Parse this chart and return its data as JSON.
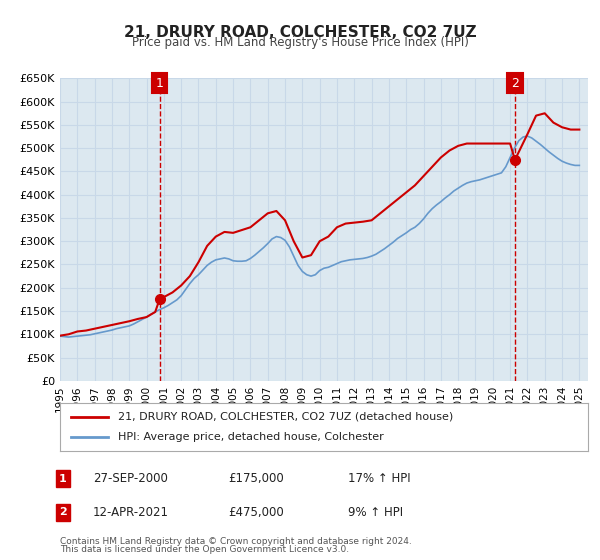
{
  "title": "21, DRURY ROAD, COLCHESTER, CO2 7UZ",
  "subtitle": "Price paid vs. HM Land Registry's House Price Index (HPI)",
  "background_color": "#ffffff",
  "grid_color": "#c8d8e8",
  "plot_bg_color": "#dce8f0",
  "red_line_color": "#cc0000",
  "blue_line_color": "#6699cc",
  "marker_color": "#cc0000",
  "annotation_box_color": "#cc0000",
  "dashed_line_color": "#cc0000",
  "ylim": [
    0,
    650000
  ],
  "yticks": [
    0,
    50000,
    100000,
    150000,
    200000,
    250000,
    300000,
    350000,
    400000,
    450000,
    500000,
    550000,
    600000,
    650000
  ],
  "ytick_labels": [
    "£0",
    "£50K",
    "£100K",
    "£150K",
    "£200K",
    "£250K",
    "£300K",
    "£350K",
    "£400K",
    "£450K",
    "£500K",
    "£550K",
    "£600K",
    "£650K"
  ],
  "xlim_start": 1995.0,
  "xlim_end": 2025.5,
  "xticks": [
    1995,
    1996,
    1997,
    1998,
    1999,
    2000,
    2001,
    2002,
    2003,
    2004,
    2005,
    2006,
    2007,
    2008,
    2009,
    2010,
    2011,
    2012,
    2013,
    2014,
    2015,
    2016,
    2017,
    2018,
    2019,
    2020,
    2021,
    2022,
    2023,
    2024,
    2025
  ],
  "marker1_x": 2000.75,
  "marker1_y": 175000,
  "marker2_x": 2021.28,
  "marker2_y": 475000,
  "legend_label1": "21, DRURY ROAD, COLCHESTER, CO2 7UZ (detached house)",
  "legend_label2": "HPI: Average price, detached house, Colchester",
  "annot1_label": "1",
  "annot2_label": "2",
  "annot1_date": "27-SEP-2000",
  "annot1_price": "£175,000",
  "annot1_hpi": "17% ↑ HPI",
  "annot2_date": "12-APR-2021",
  "annot2_price": "£475,000",
  "annot2_hpi": "9% ↑ HPI",
  "footer1": "Contains HM Land Registry data © Crown copyright and database right 2024.",
  "footer2": "This data is licensed under the Open Government Licence v3.0.",
  "hpi_x": [
    1995.0,
    1995.25,
    1995.5,
    1995.75,
    1996.0,
    1996.25,
    1996.5,
    1996.75,
    1997.0,
    1997.25,
    1997.5,
    1997.75,
    1998.0,
    1998.25,
    1998.5,
    1998.75,
    1999.0,
    1999.25,
    1999.5,
    1999.75,
    2000.0,
    2000.25,
    2000.5,
    2000.75,
    2001.0,
    2001.25,
    2001.5,
    2001.75,
    2002.0,
    2002.25,
    2002.5,
    2002.75,
    2003.0,
    2003.25,
    2003.5,
    2003.75,
    2004.0,
    2004.25,
    2004.5,
    2004.75,
    2005.0,
    2005.25,
    2005.5,
    2005.75,
    2006.0,
    2006.25,
    2006.5,
    2006.75,
    2007.0,
    2007.25,
    2007.5,
    2007.75,
    2008.0,
    2008.25,
    2008.5,
    2008.75,
    2009.0,
    2009.25,
    2009.5,
    2009.75,
    2010.0,
    2010.25,
    2010.5,
    2010.75,
    2011.0,
    2011.25,
    2011.5,
    2011.75,
    2012.0,
    2012.25,
    2012.5,
    2012.75,
    2013.0,
    2013.25,
    2013.5,
    2013.75,
    2014.0,
    2014.25,
    2014.5,
    2014.75,
    2015.0,
    2015.25,
    2015.5,
    2015.75,
    2016.0,
    2016.25,
    2016.5,
    2016.75,
    2017.0,
    2017.25,
    2017.5,
    2017.75,
    2018.0,
    2018.25,
    2018.5,
    2018.75,
    2019.0,
    2019.25,
    2019.5,
    2019.75,
    2020.0,
    2020.25,
    2020.5,
    2020.75,
    2021.0,
    2021.25,
    2021.5,
    2021.75,
    2022.0,
    2022.25,
    2022.5,
    2022.75,
    2023.0,
    2023.25,
    2023.5,
    2023.75,
    2024.0,
    2024.25,
    2024.5,
    2024.75,
    2025.0
  ],
  "hpi_y": [
    96000,
    95000,
    94000,
    95000,
    96000,
    97000,
    98000,
    99000,
    101000,
    103000,
    105000,
    107000,
    109000,
    112000,
    114000,
    116000,
    118000,
    122000,
    127000,
    132000,
    137000,
    143000,
    148000,
    153000,
    157000,
    162000,
    168000,
    174000,
    183000,
    196000,
    209000,
    220000,
    228000,
    238000,
    248000,
    255000,
    260000,
    262000,
    264000,
    262000,
    258000,
    257000,
    257000,
    258000,
    263000,
    270000,
    278000,
    286000,
    295000,
    305000,
    310000,
    308000,
    302000,
    288000,
    268000,
    248000,
    235000,
    228000,
    225000,
    228000,
    237000,
    242000,
    244000,
    248000,
    252000,
    256000,
    258000,
    260000,
    261000,
    262000,
    263000,
    265000,
    268000,
    272000,
    278000,
    284000,
    291000,
    298000,
    306000,
    312000,
    318000,
    325000,
    330000,
    338000,
    348000,
    360000,
    370000,
    378000,
    385000,
    393000,
    400000,
    408000,
    414000,
    420000,
    425000,
    428000,
    430000,
    432000,
    435000,
    438000,
    441000,
    444000,
    447000,
    460000,
    480000,
    500000,
    516000,
    524000,
    526000,
    522000,
    515000,
    508000,
    500000,
    492000,
    485000,
    478000,
    472000,
    468000,
    465000,
    463000,
    463000
  ],
  "price_paid_x": [
    1995.0,
    1995.5,
    1996.0,
    1996.5,
    1997.0,
    1997.5,
    1998.0,
    1998.5,
    1999.0,
    1999.5,
    2000.0,
    2000.5,
    2000.75,
    2001.5,
    2002.0,
    2002.5,
    2003.0,
    2003.5,
    2004.0,
    2004.5,
    2005.0,
    2006.0,
    2006.5,
    2007.0,
    2007.5,
    2008.0,
    2008.5,
    2009.0,
    2009.5,
    2010.0,
    2010.5,
    2011.0,
    2011.5,
    2012.0,
    2012.5,
    2013.0,
    2013.5,
    2014.0,
    2014.5,
    2015.0,
    2015.5,
    2016.0,
    2016.5,
    2017.0,
    2017.5,
    2018.0,
    2018.5,
    2019.0,
    2019.5,
    2020.0,
    2020.5,
    2021.0,
    2021.28,
    2022.0,
    2022.5,
    2023.0,
    2023.5,
    2024.0,
    2024.5,
    2025.0
  ],
  "price_paid_y": [
    97000,
    100000,
    106000,
    108000,
    112000,
    116000,
    120000,
    124000,
    128000,
    133000,
    137000,
    148000,
    175000,
    190000,
    205000,
    225000,
    255000,
    290000,
    310000,
    320000,
    318000,
    330000,
    345000,
    360000,
    365000,
    345000,
    300000,
    265000,
    270000,
    300000,
    310000,
    330000,
    338000,
    340000,
    342000,
    345000,
    360000,
    375000,
    390000,
    405000,
    420000,
    440000,
    460000,
    480000,
    495000,
    505000,
    510000,
    510000,
    510000,
    510000,
    510000,
    510000,
    475000,
    530000,
    570000,
    575000,
    555000,
    545000,
    540000,
    540000
  ]
}
